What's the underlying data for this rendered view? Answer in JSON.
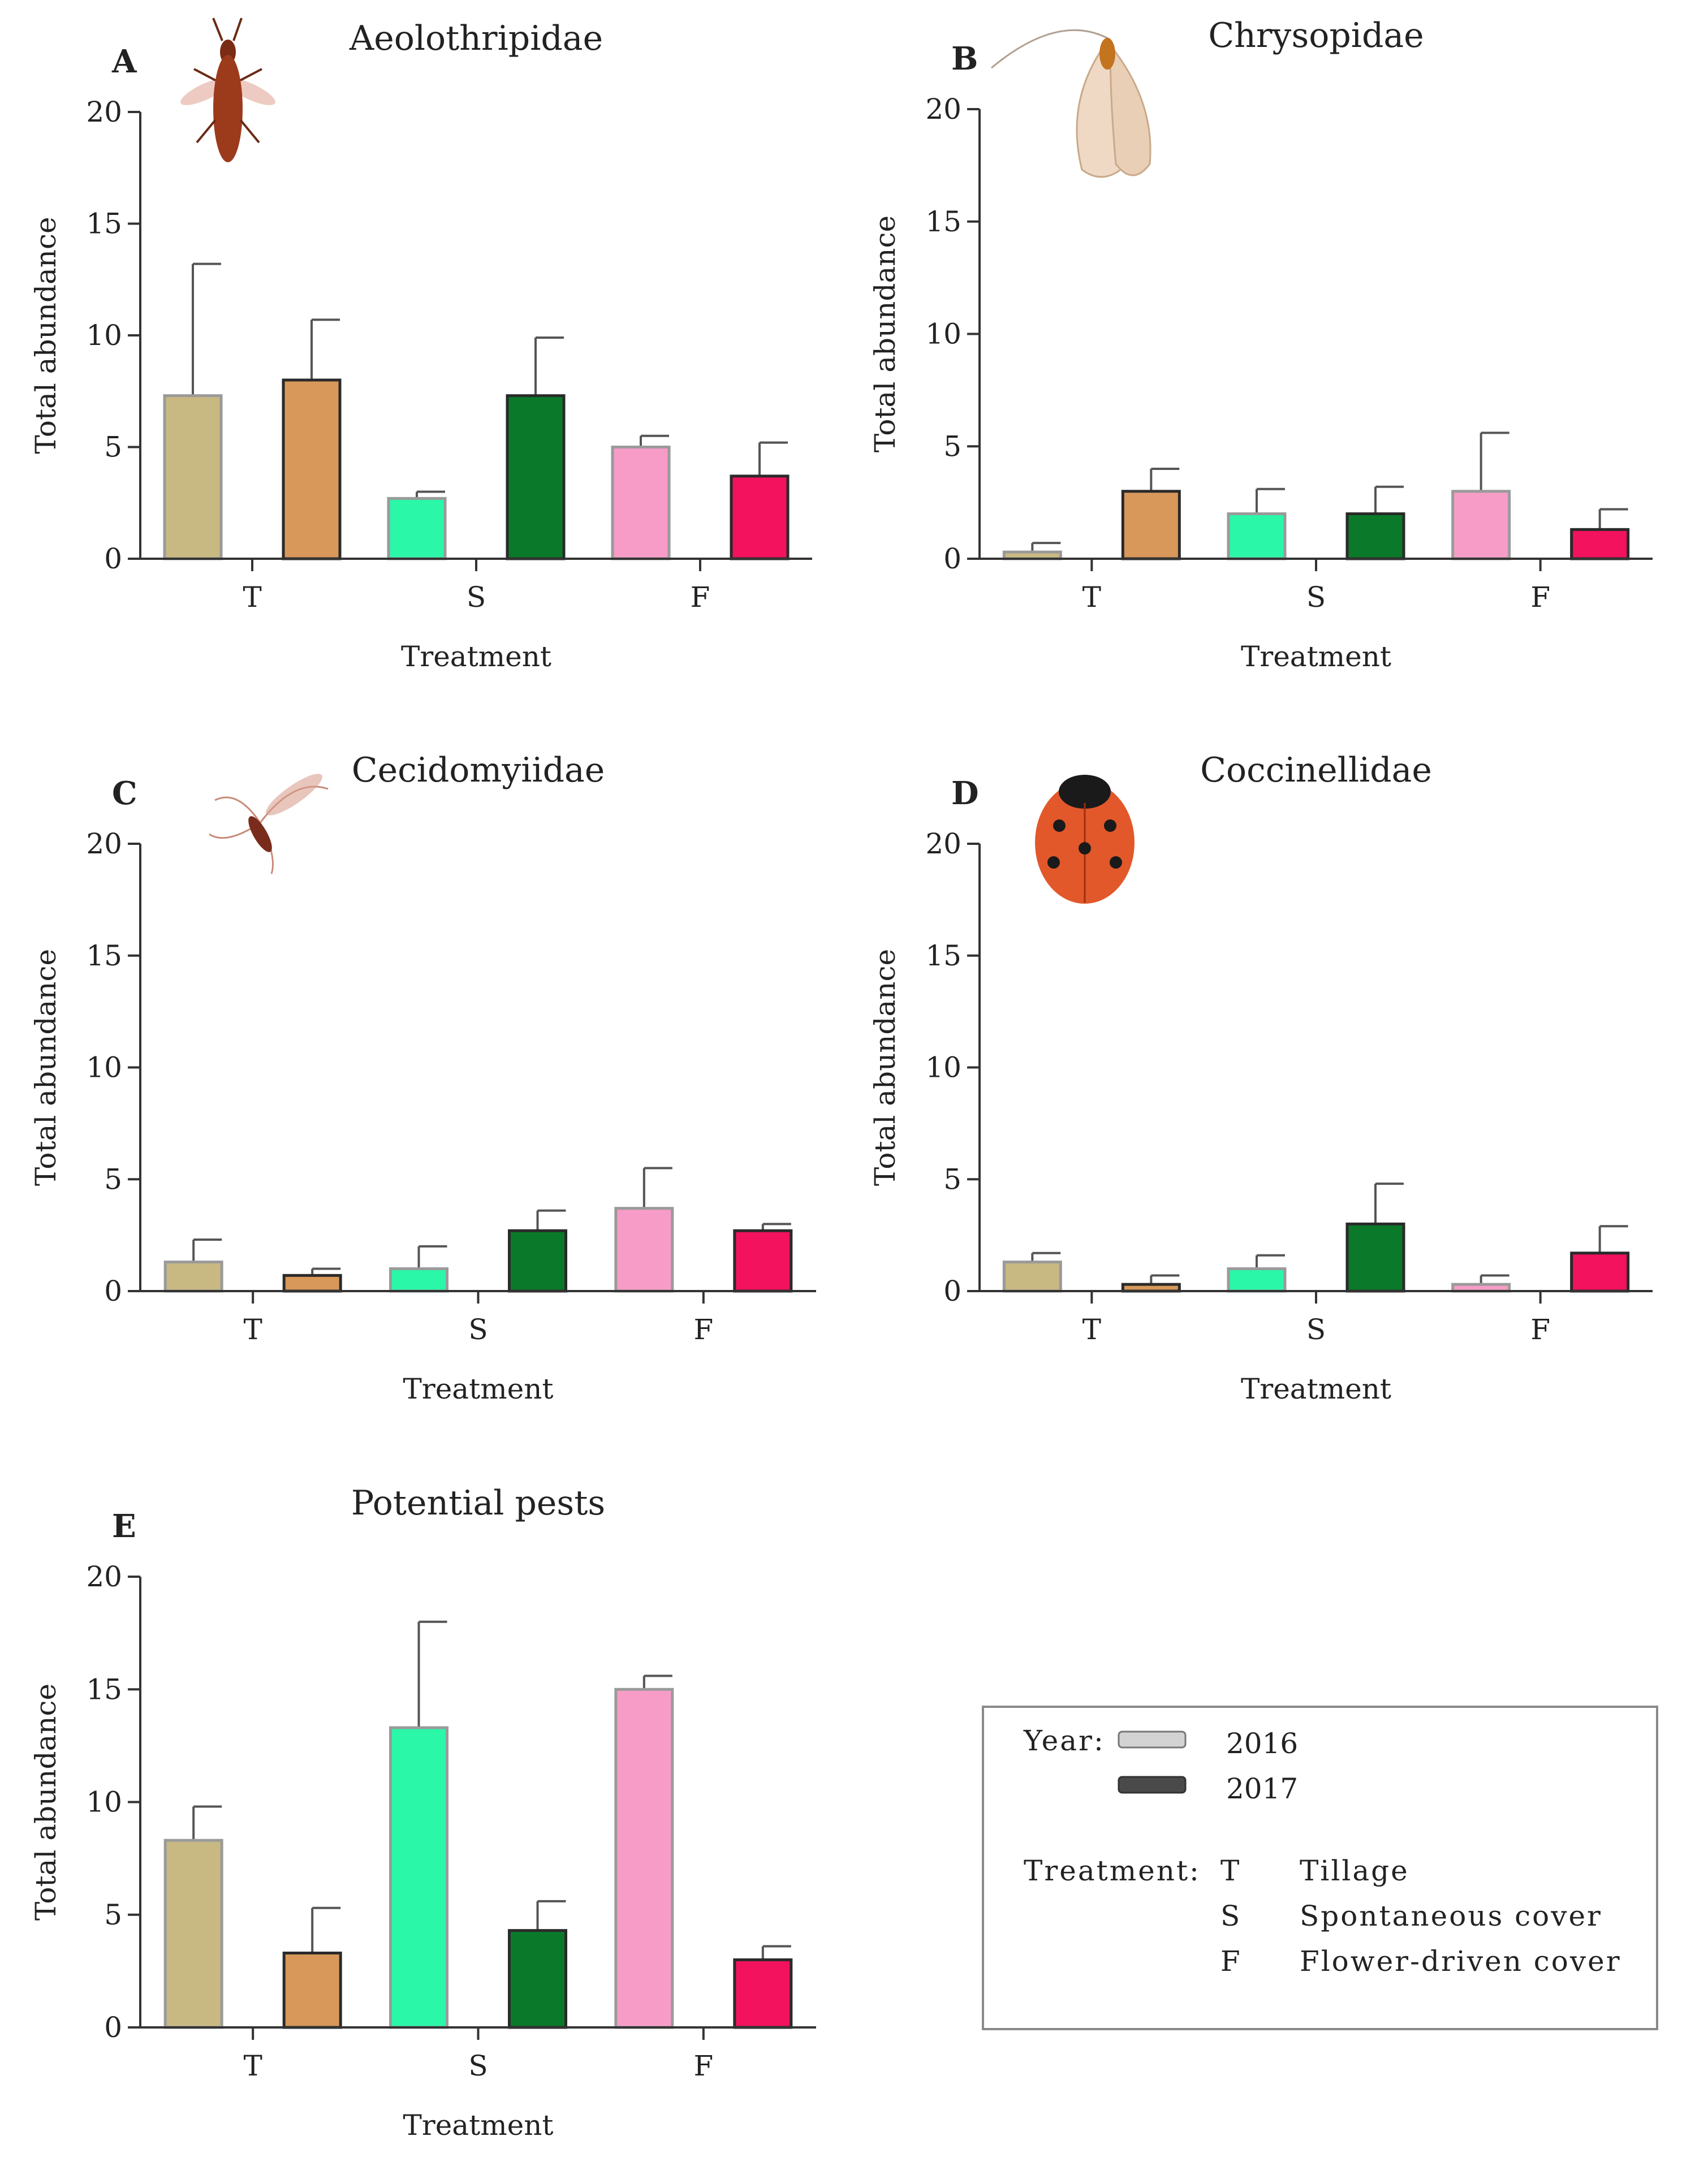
{
  "panels_order": [
    "A",
    "B",
    "C",
    "D",
    "E"
  ],
  "chart_data": [
    {
      "type": "bar",
      "panel": "A",
      "title": "Aeolothripidae",
      "icon": "thrips-insect-icon",
      "xlabel": "Treatment",
      "ylabel": "Total abundance",
      "ylim": [
        0,
        20
      ],
      "yticks": [
        0,
        5,
        10,
        15,
        20
      ],
      "categories": [
        "T",
        "S",
        "F"
      ],
      "series": [
        {
          "name": "2016",
          "values": [
            7.3,
            2.7,
            5.0
          ],
          "errors": [
            5.9,
            0.3,
            0.5
          ]
        },
        {
          "name": "2017",
          "values": [
            8.0,
            7.3,
            3.7
          ],
          "errors": [
            2.7,
            2.6,
            1.5
          ]
        }
      ]
    },
    {
      "type": "bar",
      "panel": "B",
      "title": "Chrysopidae",
      "icon": "lacewing-insect-icon",
      "xlabel": "Treatment",
      "ylabel": "Total abundance",
      "ylim": [
        0,
        20
      ],
      "yticks": [
        0,
        5,
        10,
        15,
        20
      ],
      "categories": [
        "T",
        "S",
        "F"
      ],
      "series": [
        {
          "name": "2016",
          "values": [
            0.3,
            2.0,
            3.0
          ],
          "errors": [
            0.4,
            1.1,
            2.6
          ]
        },
        {
          "name": "2017",
          "values": [
            3.0,
            2.0,
            1.3
          ],
          "errors": [
            1.0,
            1.2,
            0.9
          ]
        }
      ]
    },
    {
      "type": "bar",
      "panel": "C",
      "title": "Cecidomyiidae",
      "icon": "gall-midge-insect-icon",
      "xlabel": "Treatment",
      "ylabel": "Total abundance",
      "ylim": [
        0,
        20
      ],
      "yticks": [
        0,
        5,
        10,
        15,
        20
      ],
      "categories": [
        "T",
        "S",
        "F"
      ],
      "series": [
        {
          "name": "2016",
          "values": [
            1.3,
            1.0,
            3.7
          ],
          "errors": [
            1.0,
            1.0,
            1.8
          ]
        },
        {
          "name": "2017",
          "values": [
            0.7,
            2.7,
            2.7
          ],
          "errors": [
            0.3,
            0.9,
            0.3
          ]
        }
      ]
    },
    {
      "type": "bar",
      "panel": "D",
      "title": "Coccinellidae",
      "icon": "ladybird-beetle-icon",
      "xlabel": "Treatment",
      "ylabel": "Total  abundance",
      "ylim": [
        0,
        20
      ],
      "yticks": [
        0,
        5,
        10,
        15,
        20
      ],
      "categories": [
        "T",
        "S",
        "F"
      ],
      "series": [
        {
          "name": "2016",
          "values": [
            1.3,
            1.0,
            0.3
          ],
          "errors": [
            0.4,
            0.6,
            0.4
          ]
        },
        {
          "name": "2017",
          "values": [
            0.3,
            3.0,
            1.7
          ],
          "errors": [
            0.4,
            1.8,
            1.2
          ]
        }
      ]
    },
    {
      "type": "bar",
      "panel": "E",
      "title": "Potential pests",
      "icon": "",
      "xlabel": "Treatment",
      "ylabel": "Total abundance",
      "ylim": [
        0,
        20
      ],
      "yticks": [
        0,
        5,
        10,
        15,
        20
      ],
      "categories": [
        "T",
        "S",
        "F"
      ],
      "series": [
        {
          "name": "2016",
          "values": [
            8.3,
            13.3,
            15.0
          ],
          "errors": [
            1.5,
            4.7,
            0.6
          ]
        },
        {
          "name": "2017",
          "values": [
            3.3,
            4.3,
            3.0
          ],
          "errors": [
            2.0,
            1.3,
            0.6
          ]
        }
      ]
    }
  ],
  "colors": {
    "T": [
      "#c8b882",
      "#d8985a"
    ],
    "S": [
      "#2af7a8",
      "#0a7a2a"
    ],
    "F": [
      "#f79cc6",
      "#f2125e"
    ],
    "axis": "#333333",
    "error_bar": "#555555"
  },
  "legend": {
    "year_label": "Year:",
    "years": [
      {
        "label": "2016",
        "swatch_color": "#d3d3d3"
      },
      {
        "label": "2017",
        "swatch_color": "#4a4a4a"
      }
    ],
    "treatment_label": "Treatment:",
    "treatments": [
      {
        "code": "T",
        "name": "Tillage",
        "color": "#dca86a"
      },
      {
        "code": "S",
        "name": "Spontaneous cover",
        "color": "#22c83c"
      },
      {
        "code": "F",
        "name": "Flower-driven cover",
        "color": "#f2529a"
      }
    ]
  }
}
